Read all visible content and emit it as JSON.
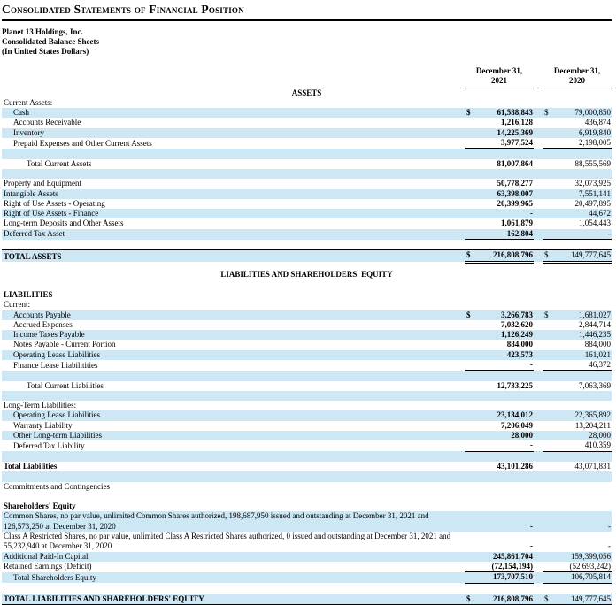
{
  "page": {
    "title": "Consolidated Statements of Financial Position",
    "company_lines": [
      "Planet 13 Holdings, Inc.",
      "Consolidated Balance Sheets",
      "(In United States Dollars)"
    ]
  },
  "columns": [
    {
      "line1": "December 31,",
      "line2": "2021"
    },
    {
      "line1": "December 31,",
      "line2": "2020"
    }
  ],
  "colors": {
    "row_shade": "#cde7f5",
    "rule": "#000000"
  },
  "rows": [
    {
      "type": "heading",
      "label": "ASSETS"
    },
    {
      "type": "item",
      "label": "Current Assets:",
      "indent": 0
    },
    {
      "type": "item",
      "label": "Cash",
      "indent": 1,
      "dollar": true,
      "v1": "61,588,843",
      "v2": "79,000,850",
      "shade": true
    },
    {
      "type": "item",
      "label": "Accounts Receivable",
      "indent": 1,
      "v1": "1,216,128",
      "v2": "436,874"
    },
    {
      "type": "item",
      "label": "Inventory",
      "indent": 1,
      "v1": "14,225,369",
      "v2": "6,919,840",
      "shade": true
    },
    {
      "type": "item",
      "label": "Prepaid Expenses and Other Current Assets",
      "indent": 1,
      "v1": "3,977,524",
      "v2": "2,198,005",
      "underline": "single"
    },
    {
      "type": "blank",
      "shade": true
    },
    {
      "type": "item",
      "label": "Total Current Assets",
      "indent": 2,
      "v1": "81,007,864",
      "v2": "88,555,569"
    },
    {
      "type": "blank",
      "shade": true
    },
    {
      "type": "item",
      "label": "Property and Equipment",
      "indent": 0,
      "v1": "50,778,277",
      "v2": "32,073,925"
    },
    {
      "type": "item",
      "label": "Intangible Assets",
      "indent": 0,
      "v1": "63,398,007",
      "v2": "7,551,141",
      "shade": true
    },
    {
      "type": "item",
      "label": "Right of Use Assets - Operating",
      "indent": 0,
      "v1": "20,399,965",
      "v2": "20,497,895"
    },
    {
      "type": "item",
      "label": "Right of Use Assets - Finance",
      "indent": 0,
      "v1": "-",
      "v2": "44,672",
      "shade": true
    },
    {
      "type": "item",
      "label": "Long-term Deposits and Other Assets",
      "indent": 0,
      "v1": "1,061,879",
      "v2": "1,054,443"
    },
    {
      "type": "item",
      "label": "Deferred Tax Asset",
      "indent": 0,
      "v1": "162,804",
      "v2": "-",
      "shade": true,
      "underline": "single"
    },
    {
      "type": "blank"
    },
    {
      "type": "item",
      "label": "TOTAL ASSETS",
      "indent": 0,
      "bold": true,
      "dollar": true,
      "v1": "216,808,796",
      "v2": "149,777,645",
      "shade": true,
      "topBorder": true,
      "underline": "double"
    },
    {
      "type": "heading",
      "label": "LIABILITIES AND SHAREHOLDERS' EQUITY",
      "big": true
    },
    {
      "type": "item",
      "label": "LIABILITIES",
      "indent": 0,
      "bold": true
    },
    {
      "type": "item",
      "label": "Current:",
      "indent": 0
    },
    {
      "type": "item",
      "label": "Accounts Payable",
      "indent": 1,
      "dollar": true,
      "v1": "3,266,783",
      "v2": "1,681,027",
      "shade": true
    },
    {
      "type": "item",
      "label": "Accrued Expenses",
      "indent": 1,
      "v1": "7,032,620",
      "v2": "2,844,714"
    },
    {
      "type": "item",
      "label": "Income Taxes Payable",
      "indent": 1,
      "v1": "1,126,249",
      "v2": "1,446,235",
      "shade": true
    },
    {
      "type": "item",
      "label": "Notes Payable - Current Portion",
      "indent": 1,
      "v1": "884,000",
      "v2": "884,000"
    },
    {
      "type": "item",
      "label": "Operating Lease Liabilities",
      "indent": 1,
      "v1": "423,573",
      "v2": "161,021",
      "shade": true
    },
    {
      "type": "item",
      "label": "Finance Lease Liabilitities",
      "indent": 1,
      "v1": "-",
      "v2": "46,372",
      "underline": "single"
    },
    {
      "type": "blank",
      "shade": true
    },
    {
      "type": "item",
      "label": "Total Current Liabilities",
      "indent": 2,
      "v1": "12,733,225",
      "v2": "7,063,369"
    },
    {
      "type": "blank",
      "shade": true
    },
    {
      "type": "item",
      "label": "Long-Term Liabilities:",
      "indent": 0
    },
    {
      "type": "item",
      "label": "Operating Lease Liabilities",
      "indent": 1,
      "v1": "23,134,012",
      "v2": "22,365,892",
      "shade": true
    },
    {
      "type": "item",
      "label": "Warranty Liability",
      "indent": 1,
      "v1": "7,206,049",
      "v2": "13,204,211"
    },
    {
      "type": "item",
      "label": "Other Long-term Liabilities",
      "indent": 1,
      "v1": "28,000",
      "v2": "28,000",
      "shade": true
    },
    {
      "type": "item",
      "label": "Deferred Tax Liability",
      "indent": 1,
      "v1": "-",
      "v2": "410,359",
      "underline": "single"
    },
    {
      "type": "blank",
      "shade": true
    },
    {
      "type": "item",
      "label": "Total Liabilities",
      "indent": 0,
      "bold": true,
      "v1": "43,101,286",
      "v2": "43,071,831"
    },
    {
      "type": "blank",
      "shade": true
    },
    {
      "type": "item",
      "label": "Commitments and Contingencies",
      "indent": 0
    },
    {
      "type": "blank"
    },
    {
      "type": "item",
      "label": "Shareholders' Equity",
      "indent": 0,
      "bold": true
    },
    {
      "type": "item",
      "label": "Common Shares, no par value, unlimited Common Shares authorized, 198,687,950 issued and outstanding at December 31, 2021 and 126,573,250 at December 31, 2020",
      "indent": 0,
      "v1": "-",
      "v2": "-",
      "shade": true
    },
    {
      "type": "item",
      "label": "Class A Restricted Shares, no par value, unlimited Class A Restricted Shares authorized, 0 issued and outstanding at December 31, 2021 and 55,232,940 at December 31, 2020",
      "indent": 0,
      "v1": "-",
      "v2": "-"
    },
    {
      "type": "item",
      "label": "Additional Paid-In Capital",
      "indent": 0,
      "v1": "245,861,704",
      "v2": "159,399,056",
      "shade": true
    },
    {
      "type": "item",
      "label": "Retained Earnings (Deficit)",
      "indent": 0,
      "v1": "(72,154,194)",
      "v2": "(52,693,242)",
      "underline": "single"
    },
    {
      "type": "item",
      "label": "Total Shareholders Equity",
      "indent": 1,
      "v1": "173,707,510",
      "v2": "106,705,814",
      "shade": true,
      "underline": "single"
    },
    {
      "type": "blank"
    },
    {
      "type": "item",
      "label": "TOTAL LIABILITIES AND SHAREHOLDERS' EQUITY",
      "indent": 0,
      "bold": true,
      "dollar": true,
      "v1": "216,808,796",
      "v2": "149,777,645",
      "shade": true,
      "topBorder": true,
      "bottomBorder": true,
      "underline": "double"
    }
  ]
}
